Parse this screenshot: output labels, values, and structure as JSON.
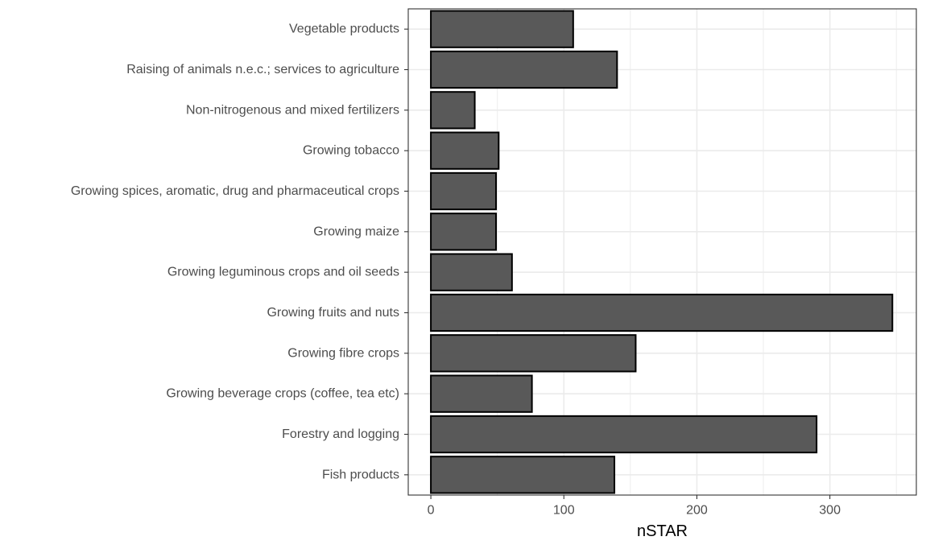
{
  "chart_data": {
    "type": "bar",
    "orientation": "horizontal",
    "categories": [
      "Vegetable products",
      "Raising of animals n.e.c.; services to agriculture",
      "Non-nitrogenous and mixed fertilizers",
      "Growing tobacco",
      "Growing spices, aromatic, drug and pharmaceutical crops",
      "Growing maize",
      "Growing leguminous crops and oil seeds",
      "Growing fruits and nuts",
      "Growing fibre crops",
      "Growing beverage crops (coffee, tea etc)",
      "Forestry and logging",
      "Fish products"
    ],
    "values": [
      107,
      140,
      33,
      51,
      49,
      49,
      61,
      347,
      154,
      76,
      290,
      138
    ],
    "xlabel": "nSTAR",
    "ylabel": "",
    "title": "",
    "xlim": [
      -17,
      365
    ],
    "xticks": [
      0,
      100,
      200,
      300
    ],
    "grid": true,
    "legend": "none",
    "colors": {
      "bar_fill": "#595959",
      "bar_stroke": "#000000",
      "grid": "#ebebeb",
      "panel_border": "#333333"
    }
  }
}
